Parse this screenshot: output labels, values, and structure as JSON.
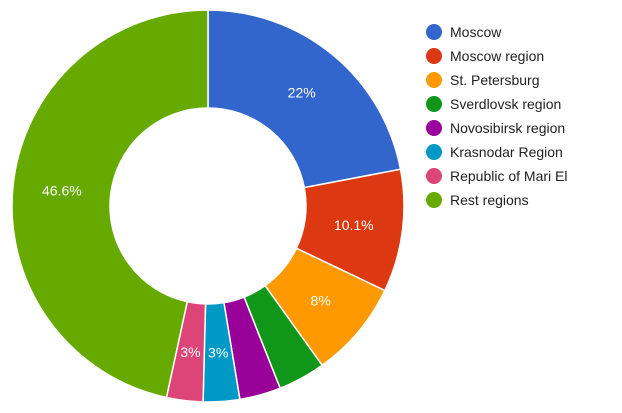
{
  "chart_data": {
    "type": "pie",
    "title": "",
    "legend_position": "right",
    "categories": [
      "Moscow",
      "Moscow region",
      "St. Petersburg",
      "Sverdlovsk region",
      "Novosibirsk region",
      "Krasnodar Region",
      "Republic of Mari El",
      "Rest regions"
    ],
    "values": [
      22,
      10.1,
      8,
      3.9,
      3.4,
      3,
      3,
      46.6
    ],
    "labels": [
      "22%",
      "10.1%",
      "8%",
      "",
      "",
      "3%",
      "3%",
      "46.6%"
    ],
    "colors": [
      "#3366cc",
      "#dc3912",
      "#ff9900",
      "#109618",
      "#990099",
      "#0099c6",
      "#dd4477",
      "#66aa00"
    ]
  }
}
